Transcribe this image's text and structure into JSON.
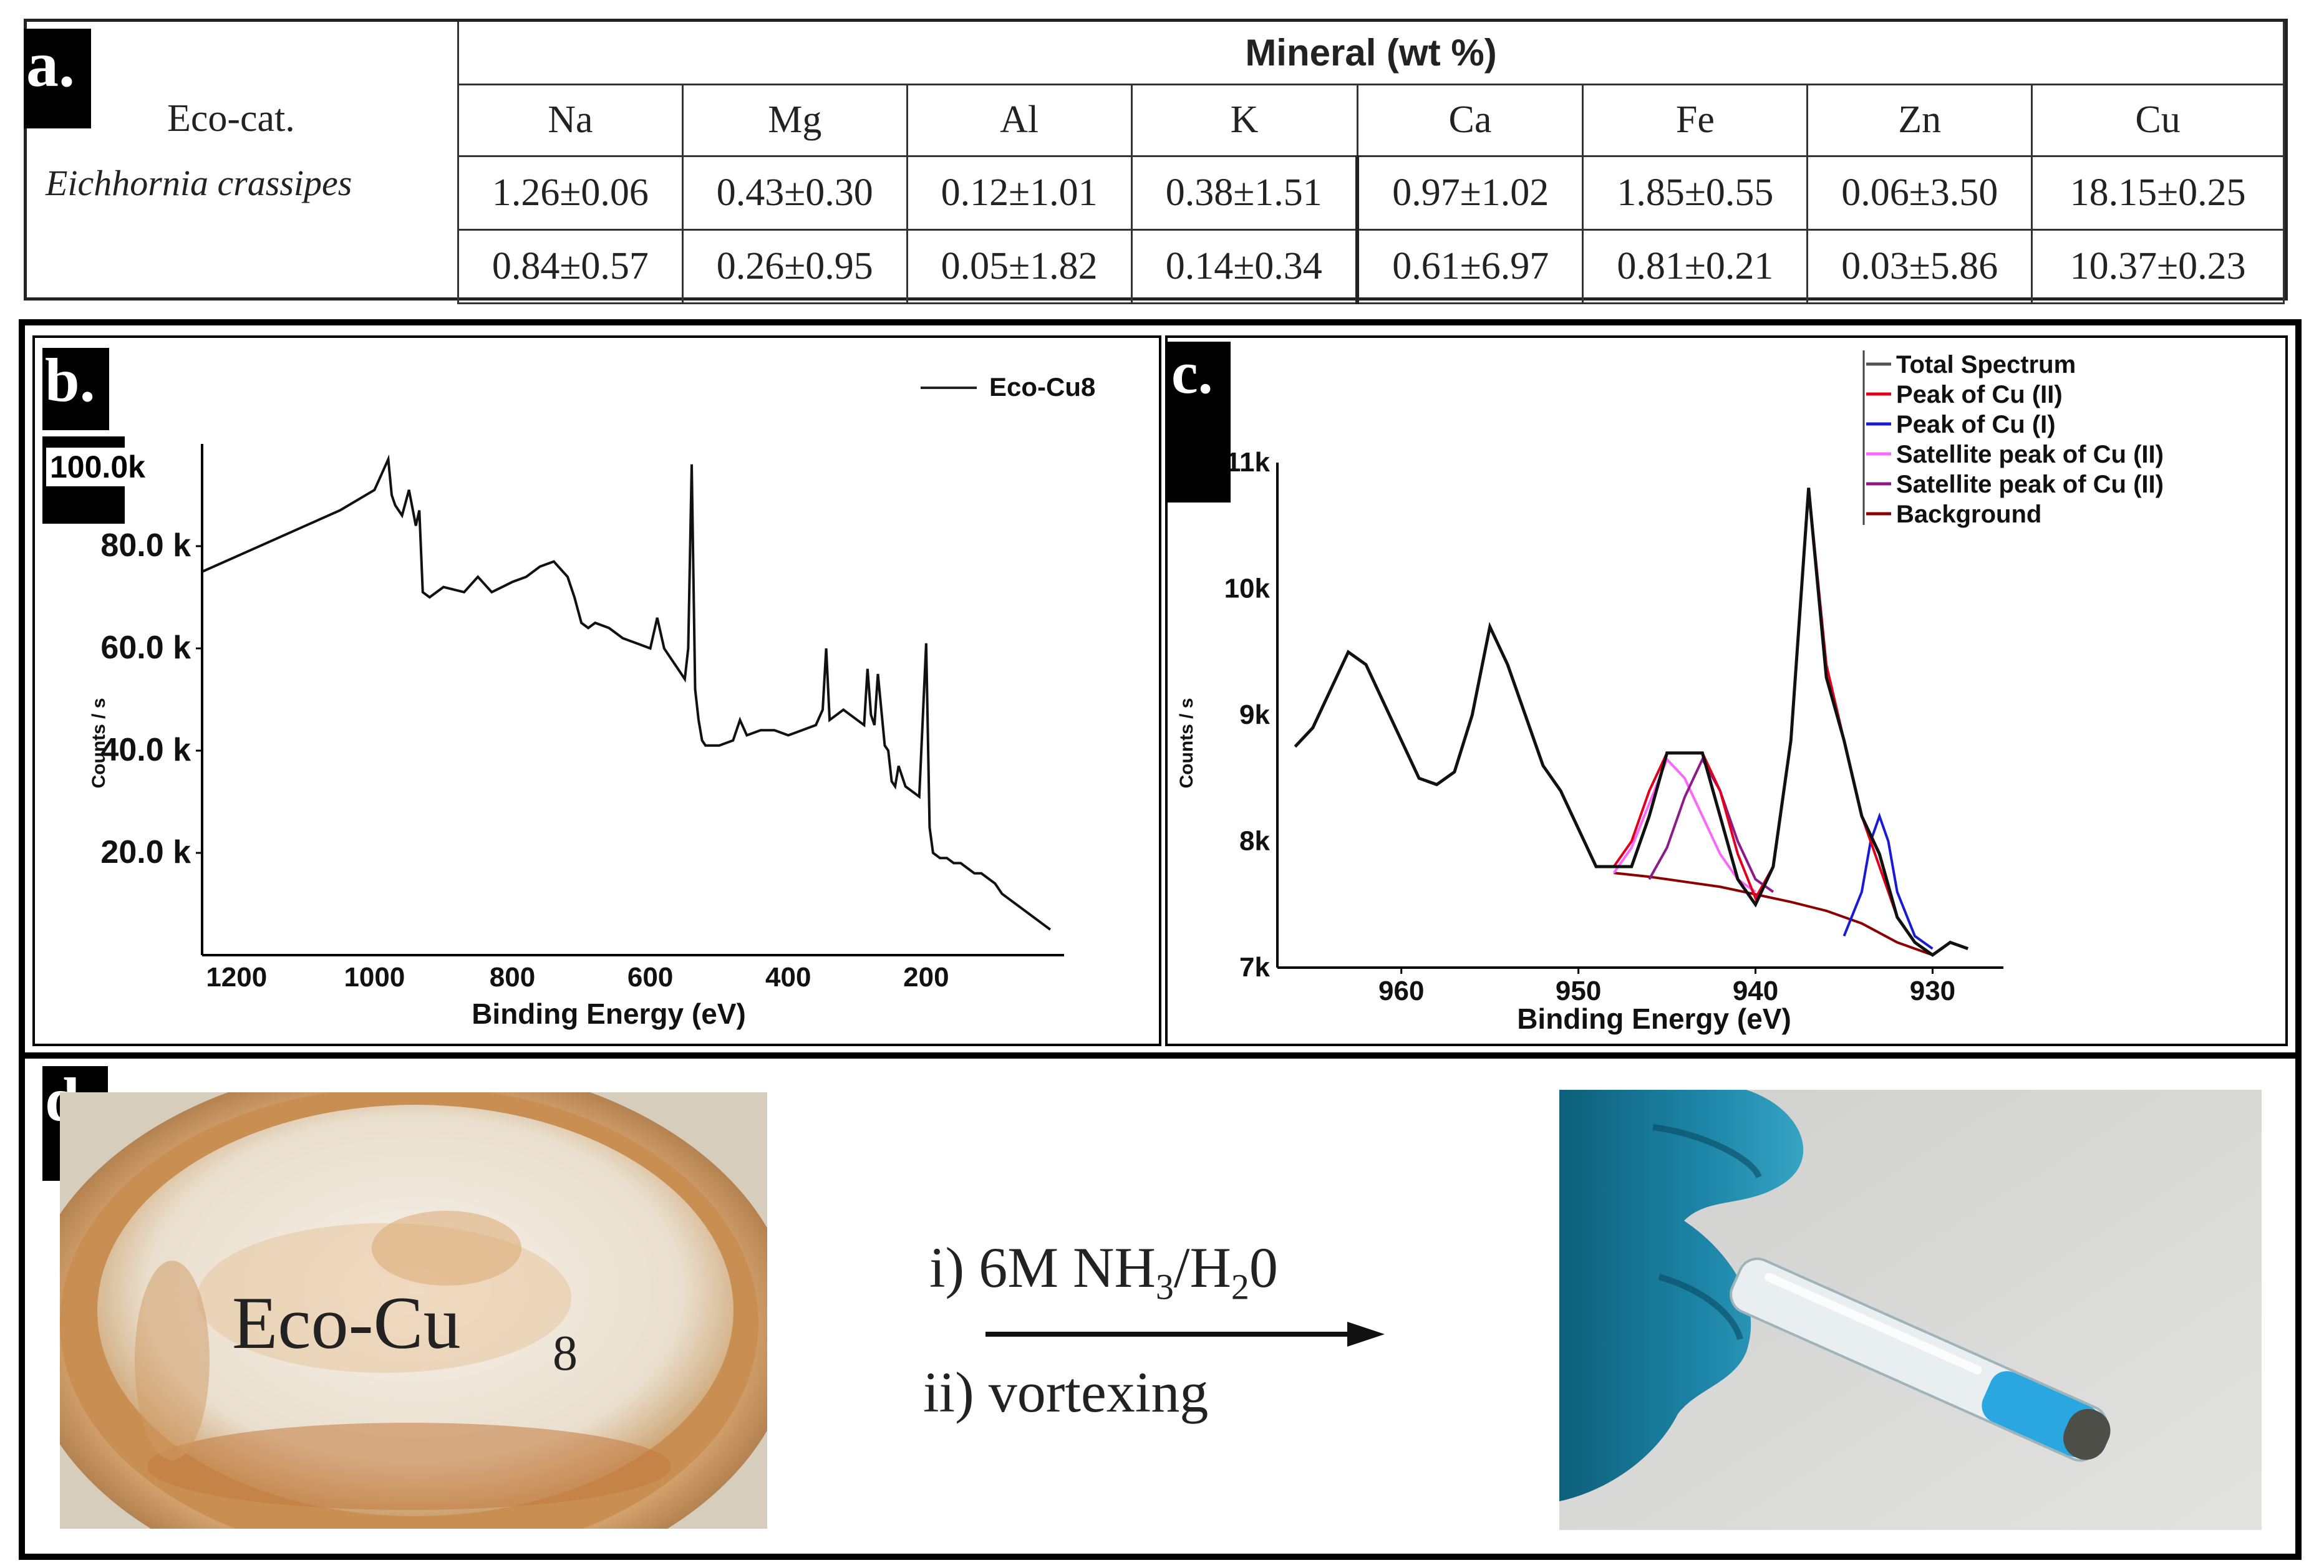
{
  "panel_a": {
    "label": "a.",
    "header_left": "Eco-cat.",
    "header_group": "Mineral (wt %)",
    "species": "Eichhornia crassipes",
    "columns": [
      "Na",
      "Mg",
      "Al",
      "K",
      "Ca",
      "Fe",
      "Zn",
      "Cu"
    ],
    "rows": [
      [
        "1.26±0.06",
        "0.43±0.30",
        "0.12±1.01",
        "0.38±1.51",
        "0.97±1.02",
        "1.85±0.55",
        "0.06±3.50",
        "18.15±0.25"
      ],
      [
        "0.84±0.57",
        "0.26±0.95",
        "0.05±1.82",
        "0.14±0.34",
        "0.61±6.97",
        "0.81±0.21",
        "0.03±5.86",
        "10.37±0.23"
      ]
    ]
  },
  "panel_b": {
    "label": "b.",
    "legend": "Eco-Cu8",
    "y_ticks": [
      "100.0k",
      "80.0 k",
      "60.0 k",
      "40.0 k",
      "20.0 k"
    ],
    "x_ticks": [
      "1200",
      "1000",
      "800",
      "600",
      "400",
      "200"
    ],
    "xlabel": "Binding Energy (eV)",
    "ylabel": "Counts / s"
  },
  "panel_c": {
    "label": "c.",
    "legend": [
      {
        "name": "Total Spectrum",
        "color": "#555555"
      },
      {
        "name": "Peak of Cu (II)",
        "color": "#e0001b"
      },
      {
        "name": "Peak of Cu (I)",
        "color": "#1a1ad6"
      },
      {
        "name": "Satellite peak of Cu (II)",
        "color": "#ff66ff"
      },
      {
        "name": "Satellite peak of Cu (II)",
        "color": "#8b1a8b"
      },
      {
        "name": "Background",
        "color": "#8b0000"
      }
    ],
    "y_ticks": [
      "11k",
      "10k",
      "9k",
      "8k",
      "7k"
    ],
    "x_ticks": [
      "960",
      "950",
      "940",
      "930"
    ],
    "xlabel": "Binding Energy (eV)",
    "ylabel": "Counts / s"
  },
  "panel_d": {
    "label": "d.",
    "photo_left_text": "Eco-Cu",
    "photo_left_sub": "8",
    "step1_pre": "i) 6M NH",
    "step1_sub1": "3",
    "step1_mid": "/H",
    "step1_sub2": "2",
    "step1_post": "0",
    "step2": "ii) vortexing"
  },
  "chart_data": [
    {
      "type": "line",
      "title": "",
      "xlabel": "Binding Energy (eV)",
      "ylabel": "Counts / s",
      "xlim": [
        1250,
        0
      ],
      "ylim": [
        0,
        100000
      ],
      "x_ticks": [
        1200,
        1000,
        800,
        600,
        400,
        200
      ],
      "y_ticks": [
        20000,
        40000,
        60000,
        80000,
        100000
      ],
      "series": [
        {
          "name": "Eco-Cu8",
          "x": [
            1250,
            1200,
            1150,
            1100,
            1050,
            1000,
            990,
            980,
            975,
            970,
            960,
            950,
            940,
            935,
            930,
            920,
            900,
            870,
            850,
            830,
            800,
            780,
            760,
            740,
            720,
            710,
            700,
            690,
            680,
            660,
            640,
            620,
            600,
            590,
            580,
            570,
            560,
            550,
            545,
            540,
            535,
            530,
            525,
            520,
            500,
            480,
            470,
            460,
            440,
            420,
            400,
            380,
            360,
            350,
            345,
            340,
            330,
            320,
            300,
            290,
            285,
            280,
            275,
            270,
            260,
            255,
            250,
            245,
            240,
            230,
            220,
            210,
            200,
            195,
            190,
            180,
            170,
            160,
            150,
            140,
            130,
            120,
            110,
            100,
            90,
            80,
            70,
            60,
            50,
            40,
            30,
            20
          ],
          "y": [
            75000,
            78000,
            81000,
            84000,
            87000,
            91000,
            94000,
            97000,
            90000,
            88000,
            86000,
            91000,
            84000,
            87000,
            71000,
            70000,
            72000,
            71000,
            74000,
            71000,
            73000,
            74000,
            76000,
            77000,
            74000,
            70000,
            65000,
            64000,
            65000,
            64000,
            62000,
            61000,
            60000,
            66000,
            60000,
            58000,
            56000,
            54000,
            60000,
            96000,
            52000,
            46000,
            42000,
            41000,
            41000,
            42000,
            46000,
            43000,
            44000,
            44000,
            43000,
            44000,
            45000,
            48000,
            60000,
            46000,
            47000,
            48000,
            46000,
            45000,
            56000,
            47000,
            45000,
            55000,
            41000,
            40000,
            34000,
            33000,
            37000,
            33000,
            32000,
            31000,
            61000,
            25000,
            20000,
            19000,
            19000,
            18000,
            18000,
            17000,
            16000,
            16000,
            15000,
            14000,
            12000,
            11000,
            10000,
            9000,
            8000,
            7000,
            6000,
            5000
          ]
        }
      ]
    },
    {
      "type": "line",
      "title": "",
      "xlabel": "Binding Energy (eV)",
      "ylabel": "Counts / s",
      "xlim": [
        967,
        926
      ],
      "ylim": [
        7000,
        11000
      ],
      "x_ticks": [
        960,
        950,
        940,
        930
      ],
      "y_ticks": [
        7000,
        8000,
        9000,
        10000,
        11000
      ],
      "series": [
        {
          "name": "Total Spectrum",
          "x": [
            966,
            965,
            964,
            963,
            962,
            961,
            960,
            959,
            958,
            957,
            956,
            955,
            954,
            953,
            952,
            951,
            950,
            949,
            948,
            947,
            946,
            945,
            944,
            943,
            942,
            941,
            940,
            939,
            938,
            937,
            936,
            935,
            934,
            933,
            932,
            931,
            930,
            929,
            928
          ],
          "y": [
            8750,
            8900,
            9200,
            9500,
            9400,
            9100,
            8800,
            8500,
            8450,
            8550,
            9000,
            9700,
            9400,
            9000,
            8600,
            8400,
            8100,
            7800,
            7800,
            7800,
            8200,
            8700,
            8700,
            8700,
            8200,
            7700,
            7500,
            7800,
            8800,
            10800,
            9300,
            8800,
            8200,
            7900,
            7400,
            7200,
            7100,
            7200,
            7150
          ]
        },
        {
          "name": "Peak of Cu (II)",
          "x": [
            948,
            947,
            946,
            945,
            944,
            943,
            942,
            941,
            940,
            939,
            938,
            937,
            936,
            935,
            934,
            933,
            932,
            931,
            930
          ],
          "y": [
            7800,
            8000,
            8400,
            8700,
            8700,
            8700,
            8400,
            7900,
            7550,
            7800,
            8800,
            10800,
            9400,
            8800,
            8200,
            7800,
            7400,
            7200,
            7100
          ]
        },
        {
          "name": "Peak of Cu (I)",
          "x": [
            935,
            934,
            933.5,
            933,
            932.5,
            932,
            931,
            930
          ],
          "y": [
            7250,
            7600,
            8000,
            8200,
            8000,
            7600,
            7250,
            7150
          ]
        },
        {
          "name": "Satellite peak of Cu (II)",
          "x": [
            948,
            947,
            946,
            945,
            944,
            943,
            942,
            941,
            940
          ],
          "y": [
            7750,
            7950,
            8300,
            8650,
            8500,
            8200,
            7900,
            7700,
            7600
          ]
        },
        {
          "name": "Satellite peak of Cu (II)",
          "x": [
            946,
            945,
            944,
            943,
            942,
            941,
            940,
            939
          ],
          "y": [
            7700,
            7950,
            8350,
            8650,
            8400,
            8000,
            7700,
            7600
          ]
        },
        {
          "name": "Background",
          "x": [
            948,
            946,
            944,
            942,
            940,
            938,
            936,
            934,
            932,
            930
          ],
          "y": [
            7750,
            7720,
            7680,
            7640,
            7580,
            7520,
            7450,
            7350,
            7200,
            7100
          ]
        }
      ]
    }
  ]
}
